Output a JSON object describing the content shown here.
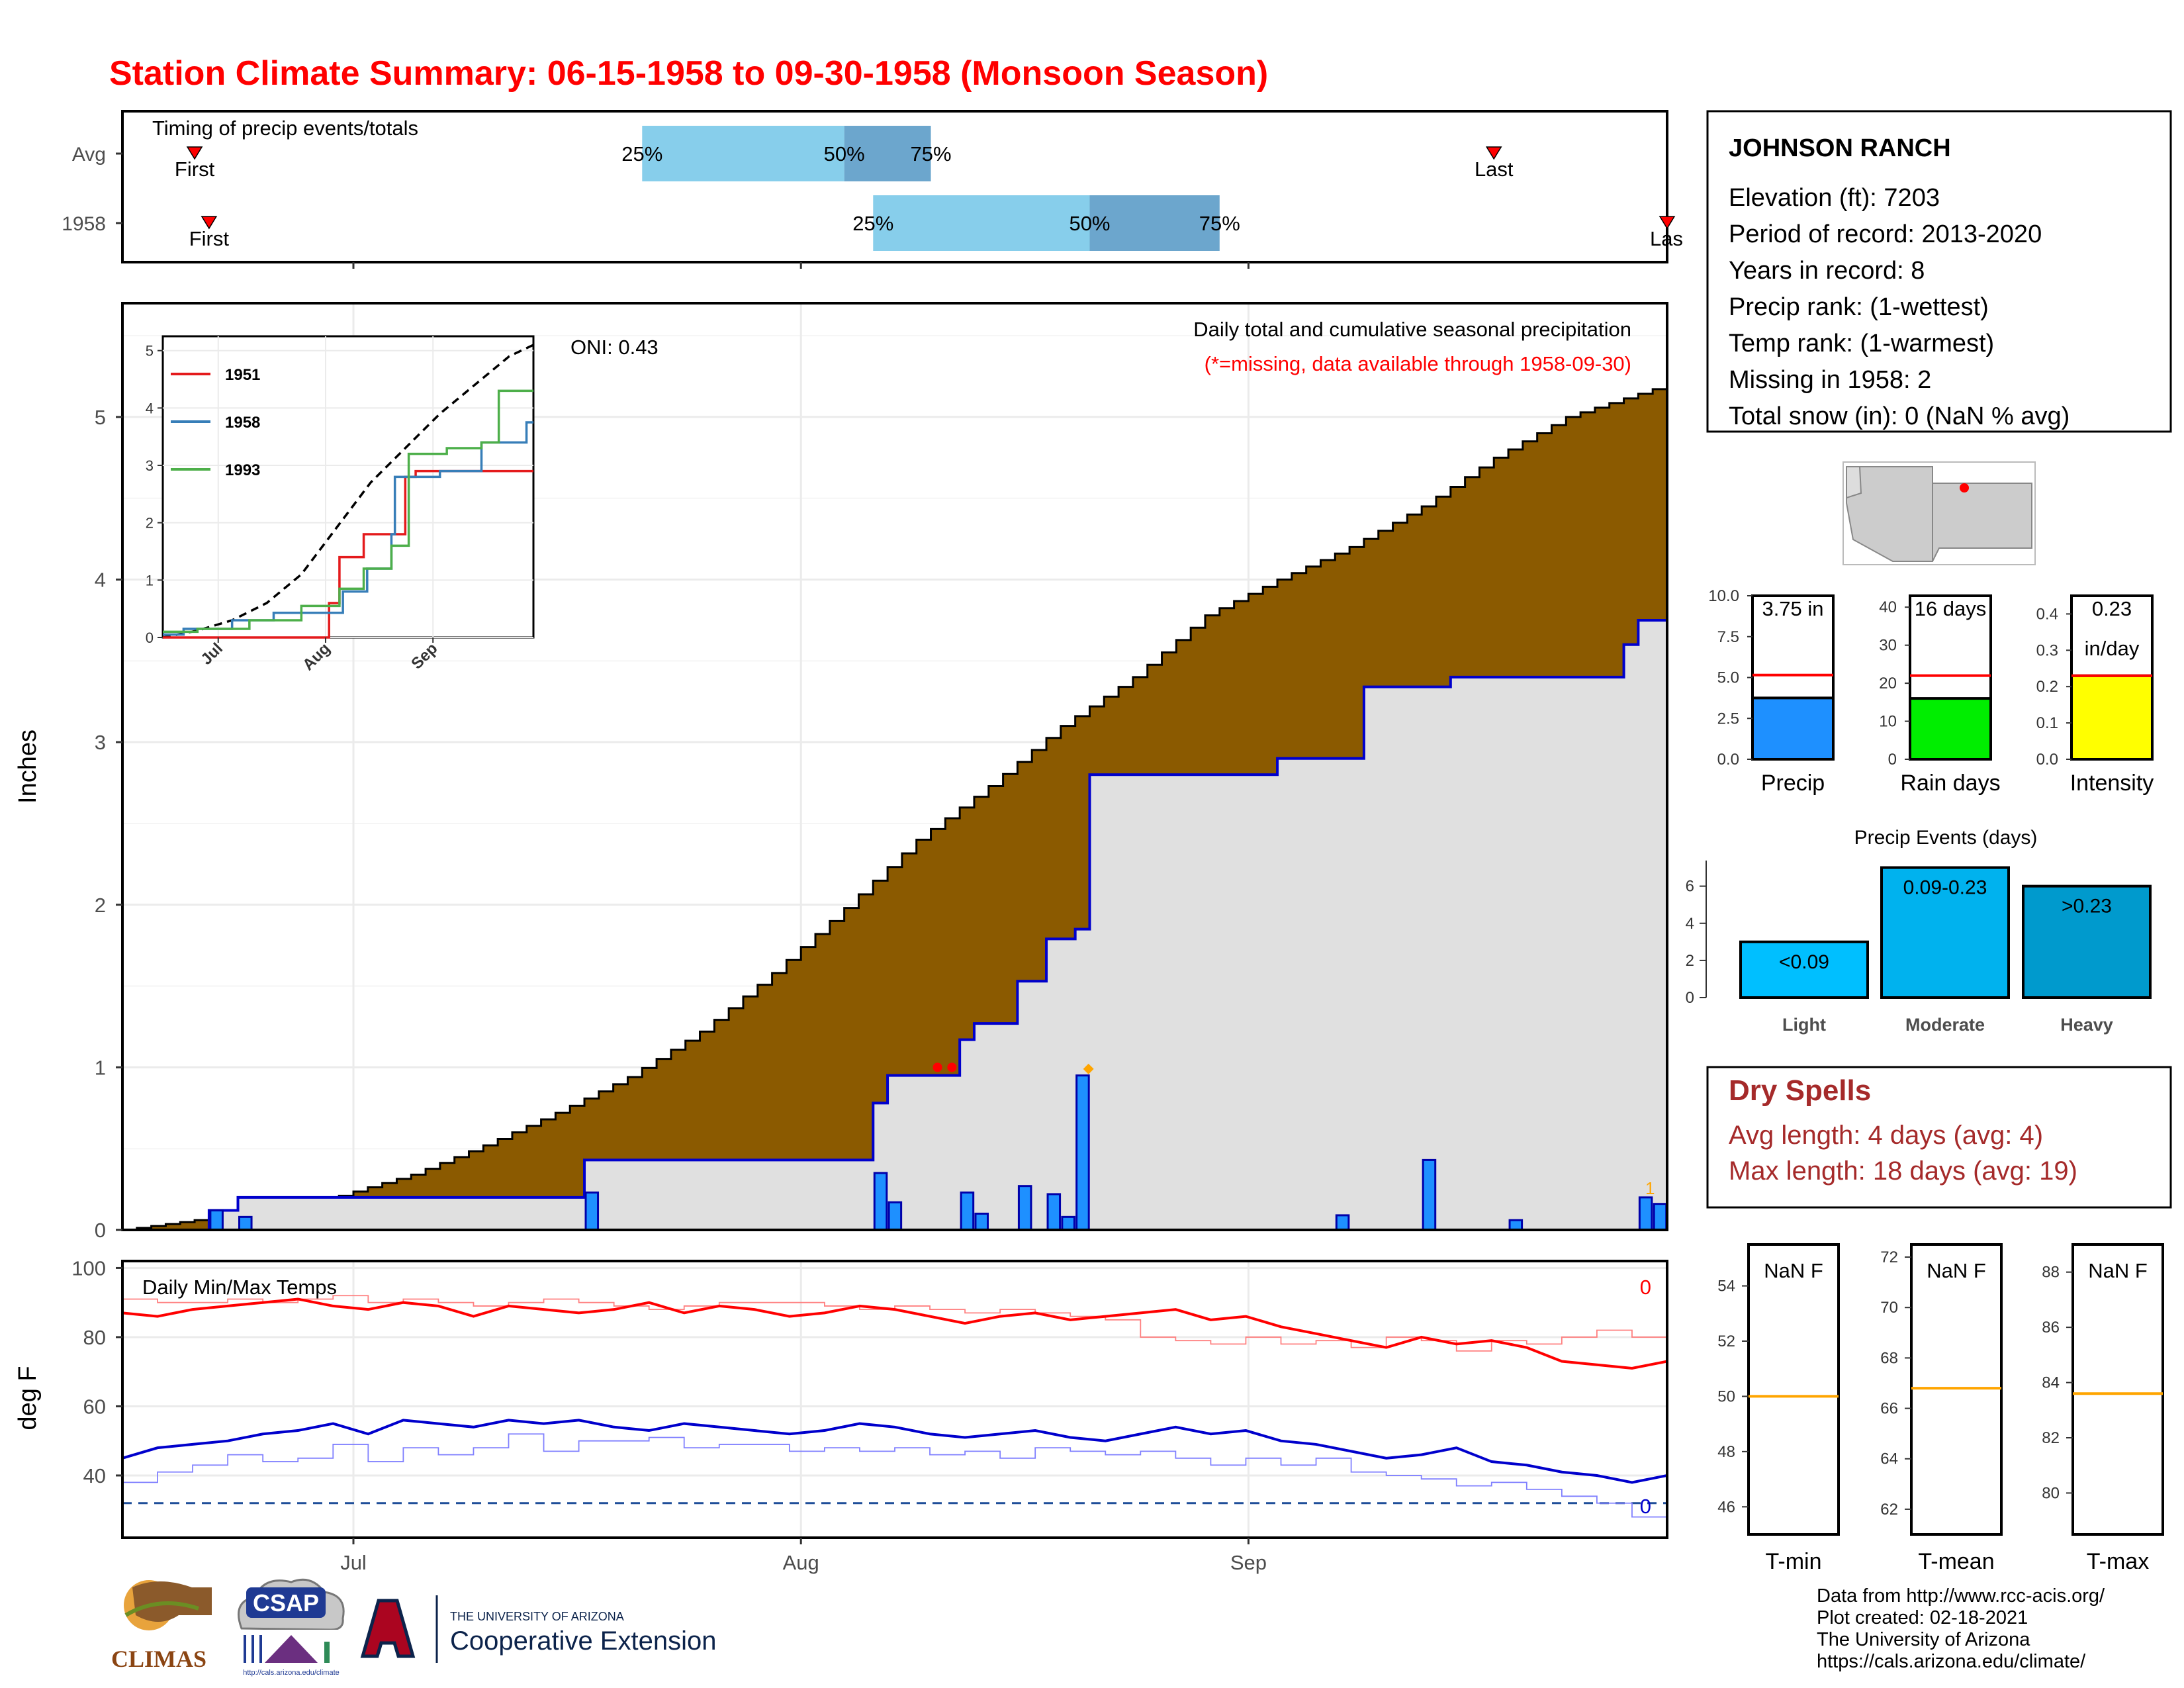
{
  "title": "Station Climate Summary: 06-15-1958 to 09-30-1958 (Monsoon Season)",
  "timing": {
    "label": "Timing of precip events/totals",
    "rows": [
      {
        "name": "Avg",
        "first": "06-20",
        "p25": "07-21",
        "p50": "08-04",
        "p75": "08-10",
        "last": "09-18"
      },
      {
        "name": "1958",
        "first": "06-21",
        "p25": "08-06",
        "p50": "08-21",
        "p75": "08-30",
        "last": "09-30"
      }
    ],
    "first_label": "First",
    "last_label": "Last",
    "last_label_clipped": "Las",
    "pct_labels": [
      "25%",
      "50%",
      "75%"
    ]
  },
  "station": {
    "name": "JOHNSON RANCH",
    "lines": [
      "Elevation (ft): 7203",
      "Period of record: 2013-2020",
      "Years in record: 8",
      "Precip rank:  (1-wettest)",
      "Temp rank:  (1-warmest)",
      "Missing in 1958: 2",
      "Total snow (in): 0 (NaN % avg)"
    ]
  },
  "precip_panel": {
    "ylabel": "Inches",
    "title": "Daily total and cumulative seasonal precipitation",
    "subtitle": "(*=missing, data available through 1958-09-30)",
    "oni": "ONI: 0.43",
    "colors": {
      "avg_fill": "#8B5A00",
      "obs_fill": "#E0E0E0",
      "obs_line": "#0000CC",
      "daily_bar": "#1E90FF",
      "missing": "#FF0000",
      "marker": "#FFA500"
    }
  },
  "inset": {
    "legend": [
      {
        "name": "1951",
        "color": "#E41A1C"
      },
      {
        "name": "1958",
        "color": "#377EB8"
      },
      {
        "name": "1993",
        "color": "#4DAF4A"
      }
    ],
    "x_ticks": [
      "Jul",
      "Aug",
      "Sep"
    ],
    "y_ticks": [
      "0",
      "1",
      "2",
      "3",
      "4",
      "5"
    ]
  },
  "temp_panel": {
    "ylabel": "deg F",
    "label": "Daily Min/Max Temps",
    "max_count": "0",
    "min_count": "0",
    "x_ticks": [
      "Jul",
      "Aug",
      "Sep"
    ]
  },
  "gauges": [
    {
      "name": "Precip",
      "value_text": "3.75 in",
      "value": 3.75,
      "avg": 5.15,
      "ymax": 10,
      "ticks": [
        "0.0",
        "2.5",
        "5.0",
        "7.5",
        "10.0"
      ],
      "color": "#1E90FF"
    },
    {
      "name": "Rain days",
      "value_text": "16 days",
      "value": 16,
      "avg": 22,
      "ymax": 43,
      "ticks": [
        "0",
        "10",
        "20",
        "30",
        "40"
      ],
      "color": "#00EE00"
    },
    {
      "name": "Intensity",
      "value_text": "0.23",
      "value_text2": "in/day",
      "value": 0.23,
      "avg": 0.23,
      "ymax": 0.45,
      "ticks": [
        "0.0",
        "0.1",
        "0.2",
        "0.3",
        "0.4"
      ],
      "color": "#FFFF00"
    }
  ],
  "events": {
    "title": "Precip Events (days)",
    "categories": [
      "Light",
      "Moderate",
      "Heavy"
    ],
    "values": [
      3,
      7,
      6
    ],
    "labels": [
      "<0.09",
      "0.09-0.23",
      ">0.23"
    ],
    "colors": [
      "#00BFFF",
      "#00B2EE",
      "#009ACD"
    ],
    "y_ticks": [
      "0",
      "2",
      "4",
      "6"
    ]
  },
  "dry_spells": {
    "title": "Dry Spells",
    "avg": "Avg length: 4 days (avg: 4)",
    "max": "Max length: 18 days (avg: 19)"
  },
  "temp_gauges": [
    {
      "name": "T-min",
      "text": "NaN F",
      "ticks": [
        "46",
        "48",
        "50",
        "52",
        "54"
      ],
      "avg": 50
    },
    {
      "name": "T-mean",
      "text": "NaN F",
      "ticks": [
        "62",
        "64",
        "66",
        "68",
        "70",
        "72"
      ],
      "avg": 66.8
    },
    {
      "name": "T-max",
      "text": "NaN F",
      "ticks": [
        "80",
        "82",
        "84",
        "86",
        "88"
      ],
      "avg": 83.6
    }
  ],
  "footer": [
    "Data from http://www.rcc-acis.org/",
    "Plot created: 02-18-2021",
    "The University of Arizona",
    "https://cals.arizona.edu/climate/"
  ],
  "logos": {
    "climas": "CLIMAS",
    "csap": "CSAP",
    "csap_url": "http://cals.arizona.edu/climate",
    "ua_line1": "THE UNIVERSITY OF ARIZONA",
    "ua_line2": "Cooperative Extension"
  },
  "chart_data": {
    "type": "area",
    "title": "Daily total and cumulative seasonal precipitation",
    "ylabel": "Inches",
    "ylim": [
      0,
      5.7
    ],
    "x_ticks": [
      "Jul",
      "Aug",
      "Sep"
    ],
    "y_ticks": [
      0,
      1,
      2,
      3,
      4,
      5
    ],
    "series": [
      {
        "name": "avg_cumulative",
        "x": [
          "06-15",
          "06-20",
          "06-25",
          "06-30",
          "07-05",
          "07-10",
          "07-15",
          "07-20",
          "07-25",
          "07-30",
          "08-04",
          "08-09",
          "08-14",
          "08-19",
          "08-24",
          "08-29",
          "09-03",
          "09-08",
          "09-13",
          "09-18",
          "09-23",
          "09-30"
        ],
        "values": [
          0.0,
          0.06,
          0.12,
          0.21,
          0.34,
          0.52,
          0.72,
          0.94,
          1.22,
          1.58,
          1.98,
          2.4,
          2.73,
          3.1,
          3.4,
          3.78,
          4.0,
          4.2,
          4.45,
          4.75,
          5.0,
          5.2
        ]
      },
      {
        "name": "1958_cumulative",
        "x": [
          "06-15",
          "06-21",
          "06-23",
          "07-17",
          "08-06",
          "08-07",
          "08-12",
          "08-13",
          "08-16",
          "08-18",
          "08-20",
          "08-21",
          "09-03",
          "09-09",
          "09-15",
          "09-27",
          "09-28",
          "09-30"
        ],
        "values": [
          0.0,
          0.12,
          0.2,
          0.43,
          0.78,
          0.95,
          1.17,
          1.27,
          1.53,
          1.79,
          1.85,
          2.8,
          2.9,
          3.34,
          3.4,
          3.6,
          3.75,
          3.75
        ]
      }
    ],
    "daily_bars": {
      "x": [
        "06-21",
        "06-23",
        "07-17",
        "08-06",
        "08-07",
        "08-12",
        "08-13",
        "08-16",
        "08-18",
        "08-19",
        "08-20",
        "09-07",
        "09-13",
        "09-19",
        "09-28",
        "09-29"
      ],
      "values": [
        0.12,
        0.08,
        0.23,
        0.35,
        0.17,
        0.23,
        0.1,
        0.27,
        0.22,
        0.08,
        0.95,
        0.09,
        0.43,
        0.06,
        0.2,
        0.16
      ]
    },
    "missing_days": [
      "08-10",
      "08-11"
    ],
    "inset": {
      "type": "line",
      "ylim": [
        0,
        5.2
      ],
      "series": [
        {
          "name": "avg",
          "x": [
            "06-15",
            "06-25",
            "07-05",
            "07-15",
            "07-25",
            "08-04",
            "08-14",
            "08-24",
            "09-03",
            "09-13",
            "09-23",
            "09-30"
          ],
          "values": [
            0,
            0.12,
            0.3,
            0.6,
            1.1,
            1.9,
            2.7,
            3.3,
            3.9,
            4.4,
            4.9,
            5.1
          ]
        },
        {
          "name": "1951",
          "x": [
            "06-15",
            "07-30",
            "08-02",
            "08-05",
            "08-12",
            "08-14",
            "08-24",
            "08-27",
            "09-30"
          ],
          "values": [
            0,
            0,
            0.6,
            1.4,
            1.8,
            1.8,
            2.8,
            2.9,
            2.9
          ]
        },
        {
          "name": "1958",
          "x": [
            "06-15",
            "06-21",
            "07-05",
            "07-17",
            "08-06",
            "08-13",
            "08-20",
            "08-21",
            "09-03",
            "09-15",
            "09-28",
            "09-30"
          ],
          "values": [
            0.05,
            0.15,
            0.3,
            0.43,
            0.8,
            1.2,
            1.8,
            2.8,
            2.9,
            3.4,
            3.75,
            3.75
          ]
        },
        {
          "name": "1993",
          "x": [
            "06-15",
            "06-25",
            "07-10",
            "07-25",
            "08-05",
            "08-12",
            "08-20",
            "08-25",
            "09-05",
            "09-15",
            "09-20",
            "09-30"
          ],
          "values": [
            0.1,
            0.15,
            0.3,
            0.55,
            0.85,
            1.2,
            1.6,
            3.2,
            3.3,
            3.4,
            4.3,
            4.3
          ]
        }
      ]
    },
    "temps": {
      "ylim": [
        22,
        102
      ],
      "y_ticks": [
        40,
        60,
        80,
        100
      ],
      "freeze_line": 32,
      "avg_max": [
        91,
        90,
        90,
        91,
        90,
        91,
        92,
        90,
        91,
        90,
        89,
        90,
        91,
        90,
        89,
        88,
        89,
        90,
        90,
        90,
        89,
        88,
        89,
        88,
        87,
        88,
        87,
        86,
        85,
        80,
        79,
        78,
        80,
        78,
        79,
        77,
        80,
        79,
        76,
        79,
        78,
        80,
        82,
        80
      ],
      "obs_max": [
        87,
        86,
        88,
        89,
        90,
        91,
        89,
        88,
        90,
        89,
        86,
        89,
        88,
        87,
        88,
        90,
        87,
        89,
        88,
        86,
        87,
        89,
        88,
        86,
        84,
        86,
        87,
        85,
        86,
        87,
        88,
        85,
        86,
        83,
        81,
        79,
        77,
        80,
        78,
        79,
        77,
        73,
        72,
        71,
        73
      ],
      "avg_min": [
        38,
        41,
        43,
        46,
        44,
        45,
        49,
        44,
        48,
        46,
        48,
        52,
        47,
        50,
        50,
        51,
        48,
        49,
        49,
        47,
        48,
        47,
        48,
        46,
        47,
        45,
        48,
        47,
        46,
        47,
        45,
        43,
        45,
        43,
        45,
        41,
        40,
        39,
        37,
        38,
        36,
        34,
        32,
        28
      ],
      "obs_min": [
        45,
        48,
        49,
        50,
        52,
        53,
        55,
        52,
        56,
        55,
        54,
        56,
        55,
        56,
        54,
        53,
        55,
        54,
        53,
        52,
        53,
        55,
        54,
        52,
        51,
        52,
        53,
        51,
        50,
        52,
        54,
        52,
        53,
        50,
        49,
        47,
        45,
        46,
        48,
        44,
        43,
        41,
        40,
        38,
        40
      ]
    }
  }
}
